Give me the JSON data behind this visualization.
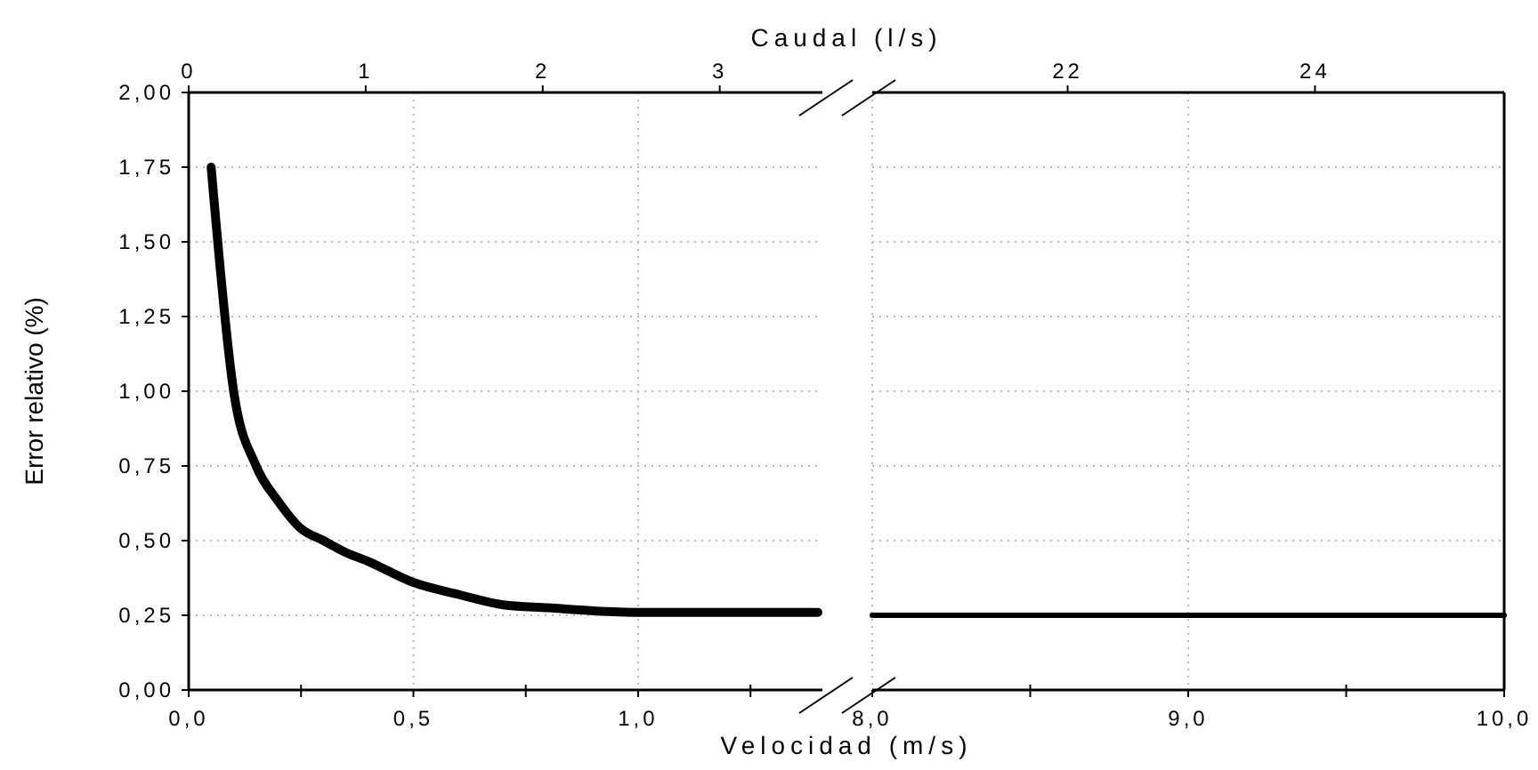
{
  "chart_data": [
    {
      "type": "line",
      "xlabel": "Velocidad (m/s)",
      "x2label": "Caudal (l/s)",
      "ylabel": "Error relativo (%)",
      "xlim": [
        0,
        1.41
      ],
      "xticks": [
        {
          "value": 0,
          "label": "0,0"
        },
        {
          "value": 0.25,
          "label": null
        },
        {
          "value": 0.5,
          "label": "0,5"
        },
        {
          "value": 0.75,
          "label": null
        },
        {
          "value": 1,
          "label": "1,0"
        },
        {
          "value": 1.25,
          "label": null
        }
      ],
      "x2lim": [
        0,
        3.58
      ],
      "x2ticks": [
        0,
        1,
        2,
        3
      ],
      "ylim": [
        0,
        2
      ],
      "yticks": [
        {
          "value": 0,
          "label": "0,00"
        },
        {
          "value": 0.25,
          "label": "0,25"
        },
        {
          "value": 0.5,
          "label": "0,50"
        },
        {
          "value": 0.75,
          "label": "0,75"
        },
        {
          "value": 1,
          "label": "1,00"
        },
        {
          "value": 1.25,
          "label": "1,25"
        },
        {
          "value": 1.5,
          "label": "1,50"
        },
        {
          "value": 1.75,
          "label": "1,75"
        },
        {
          "value": 2,
          "label": "2,00"
        }
      ],
      "grid": true,
      "line_style": "solid",
      "series": [
        {
          "color": "#000000",
          "x": [
            0.05,
            0.1,
            0.15,
            0.2,
            0.25,
            0.3,
            0.35,
            0.4,
            0.5,
            0.6,
            0.7,
            0.8,
            0.9,
            1.0,
            1.1,
            1.2,
            1.3,
            1.4
          ],
          "values": [
            1.75,
            1.0,
            0.75,
            0.63,
            0.54,
            0.5,
            0.46,
            0.43,
            0.36,
            0.32,
            0.285,
            0.275,
            0.265,
            0.26,
            0.26,
            0.26,
            0.26,
            0.26
          ]
        }
      ]
    },
    {
      "type": "line",
      "tick_labels": "x",
      "xlim": [
        8,
        10
      ],
      "xticks": [
        {
          "value": 8,
          "label": "8,0"
        },
        {
          "value": 8.5,
          "label": null
        },
        {
          "value": 9,
          "label": "9,0"
        },
        {
          "value": 9.5,
          "label": null
        },
        {
          "value": 10,
          "label": "10,0"
        }
      ],
      "x2lim": [
        20.42,
        25.53
      ],
      "x2ticks": [
        22,
        24
      ],
      "ylim": [
        0,
        2
      ],
      "yticks": [
        0,
        0.25,
        0.5,
        0.75,
        1,
        1.25,
        1.5,
        1.75,
        2
      ],
      "grid": true,
      "line_style": "solid",
      "series": [
        {
          "color": "#000000",
          "x": [
            8,
            8.5,
            9,
            9.5,
            10
          ],
          "values": [
            0.25,
            0.25,
            0.25,
            0.25,
            0.25
          ]
        }
      ]
    }
  ]
}
